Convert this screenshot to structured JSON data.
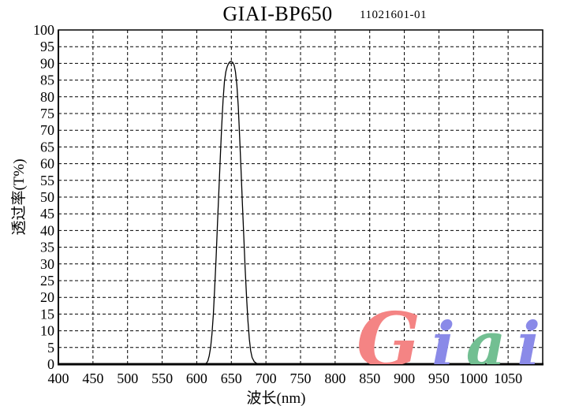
{
  "header": {
    "title": "GIAI-BP650",
    "serial": "11021601-01"
  },
  "axes": {
    "y_label": "透过率(T%)",
    "x_label": "波长(nm)"
  },
  "watermark": {
    "text": "Giai",
    "letters": [
      {
        "char": "G",
        "color": "#f48484"
      },
      {
        "char": "i",
        "color": "#8a8ae8"
      },
      {
        "char": "a",
        "color": "#72bf92"
      },
      {
        "char": "i",
        "color": "#8a8ae8"
      }
    ]
  },
  "chart_data": {
    "type": "line",
    "title": "GIAI-BP650",
    "subtitle": "11021601-01",
    "xlabel": "波长(nm)",
    "ylabel": "透过率(T%)",
    "xlim": [
      400,
      1100
    ],
    "ylim": [
      0,
      100
    ],
    "x_ticks": [
      400,
      450,
      500,
      550,
      600,
      650,
      700,
      750,
      800,
      850,
      900,
      950,
      1000,
      1050
    ],
    "y_ticks": [
      0,
      5,
      10,
      15,
      20,
      25,
      30,
      35,
      40,
      45,
      50,
      55,
      60,
      65,
      70,
      75,
      80,
      85,
      90,
      95,
      100
    ],
    "grid": "dashed grid: vertical every 50 nm, horizontal every 5 %",
    "legend": "none",
    "line_color": "#000000",
    "series": [
      {
        "name": "transmittance",
        "points": [
          [
            400,
            0
          ],
          [
            450,
            0
          ],
          [
            500,
            0
          ],
          [
            550,
            0
          ],
          [
            600,
            0
          ],
          [
            610,
            0
          ],
          [
            614,
            0.3
          ],
          [
            616,
            1
          ],
          [
            618,
            2.5
          ],
          [
            620,
            5
          ],
          [
            622,
            9
          ],
          [
            624,
            15
          ],
          [
            626,
            23
          ],
          [
            628,
            32
          ],
          [
            630,
            42
          ],
          [
            632,
            52
          ],
          [
            634,
            62
          ],
          [
            636,
            71
          ],
          [
            638,
            79
          ],
          [
            640,
            84.5
          ],
          [
            642,
            87.5
          ],
          [
            644,
            89
          ],
          [
            646,
            90
          ],
          [
            648,
            90.5
          ],
          [
            650,
            90.5
          ],
          [
            652,
            90.3
          ],
          [
            654,
            89.5
          ],
          [
            656,
            87.5
          ],
          [
            658,
            83.5
          ],
          [
            660,
            77
          ],
          [
            662,
            68
          ],
          [
            664,
            58
          ],
          [
            666,
            48
          ],
          [
            668,
            38
          ],
          [
            670,
            28.5
          ],
          [
            672,
            20
          ],
          [
            674,
            13
          ],
          [
            676,
            7.5
          ],
          [
            678,
            4
          ],
          [
            680,
            2
          ],
          [
            683,
            0.8
          ],
          [
            686,
            0.3
          ],
          [
            690,
            0
          ],
          [
            700,
            0
          ],
          [
            750,
            0
          ],
          [
            800,
            0
          ],
          [
            850,
            0
          ],
          [
            900,
            0
          ],
          [
            950,
            0
          ],
          [
            1000,
            0
          ],
          [
            1050,
            0
          ],
          [
            1100,
            0
          ]
        ]
      }
    ]
  }
}
